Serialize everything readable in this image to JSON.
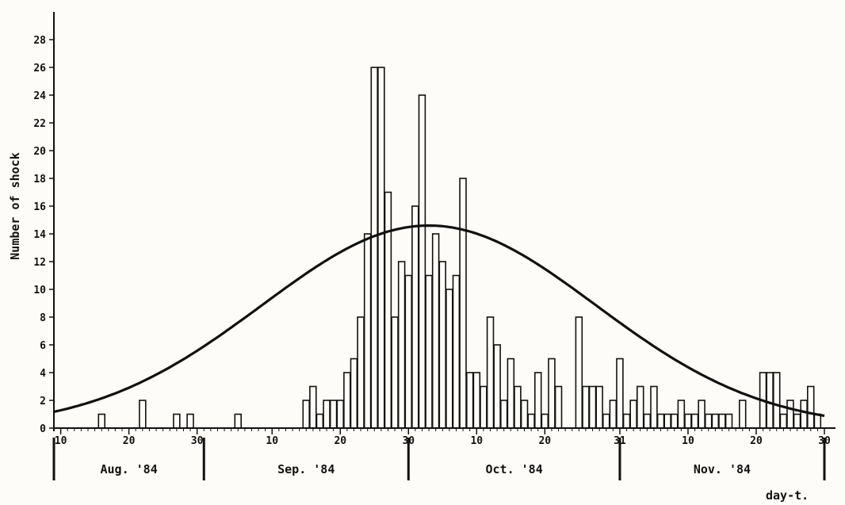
{
  "chart_data": {
    "type": "bar",
    "ylabel": "Number of shock",
    "xlabel": "day-t.",
    "ylim": [
      0,
      30
    ],
    "xlim": [
      0,
      113
    ],
    "yticks": [
      0,
      2,
      4,
      6,
      8,
      10,
      12,
      14,
      16,
      18,
      20,
      22,
      24,
      26,
      28
    ],
    "xtick_labels": [
      {
        "x": 1,
        "label": "10"
      },
      {
        "x": 11,
        "label": "20"
      },
      {
        "x": 21,
        "label": "30"
      },
      {
        "x": 32,
        "label": "10"
      },
      {
        "x": 42,
        "label": "20"
      },
      {
        "x": 52,
        "label": "30"
      },
      {
        "x": 62,
        "label": "10"
      },
      {
        "x": 72,
        "label": "20"
      },
      {
        "x": 83,
        "label": "31"
      },
      {
        "x": 93,
        "label": "10"
      },
      {
        "x": 103,
        "label": "20"
      },
      {
        "x": 113,
        "label": "30"
      }
    ],
    "month_boundaries": [
      0,
      22,
      52,
      83,
      113
    ],
    "months": [
      "Aug. '84",
      "Sep. '84",
      "Oct. '84",
      "Nov. '84"
    ],
    "grid": false,
    "bars": {
      "x": [
        7,
        13,
        18,
        20,
        27,
        37,
        38,
        39,
        40,
        41,
        42,
        43,
        44,
        45,
        46,
        47,
        48,
        49,
        50,
        51,
        52,
        53,
        54,
        55,
        56,
        57,
        58,
        59,
        60,
        61,
        62,
        63,
        64,
        65,
        66,
        67,
        68,
        69,
        70,
        71,
        72,
        73,
        74,
        77,
        78,
        79,
        80,
        81,
        82,
        83,
        84,
        85,
        86,
        87,
        88,
        89,
        90,
        91,
        92,
        93,
        94,
        95,
        96,
        97,
        98,
        99,
        101,
        104,
        105,
        106,
        107,
        108,
        109,
        110,
        111,
        112
      ],
      "values": [
        1,
        2,
        1,
        1,
        1,
        2,
        3,
        1,
        2,
        2,
        2,
        4,
        5,
        8,
        14,
        26,
        26,
        17,
        8,
        12,
        11,
        16,
        24,
        11,
        14,
        12,
        10,
        11,
        18,
        4,
        4,
        3,
        8,
        6,
        2,
        5,
        3,
        2,
        1,
        4,
        1,
        5,
        3,
        8,
        3,
        3,
        3,
        1,
        2,
        5,
        1,
        2,
        3,
        1,
        3,
        1,
        1,
        1,
        2,
        1,
        1,
        2,
        1,
        1,
        1,
        1,
        2,
        4,
        4,
        4,
        1,
        2,
        1,
        2,
        3,
        1
      ]
    },
    "fitted_curve": {
      "type": "gaussian",
      "peak": 14.6,
      "center_x": 55,
      "sigma": 24.5
    }
  }
}
